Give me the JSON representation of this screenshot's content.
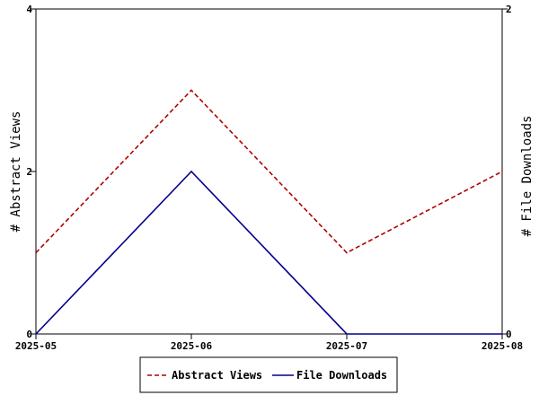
{
  "chart_data": {
    "type": "line",
    "title": "",
    "x": [
      "2025-05",
      "2025-06",
      "2025-07",
      "2025-08"
    ],
    "xlabel": "",
    "y_left": {
      "label": "# Abstract Views",
      "range": [
        0,
        4
      ],
      "ticks": [
        0,
        2,
        4
      ],
      "tick_labels": [
        "0",
        "2",
        "4"
      ]
    },
    "y_right": {
      "label": "# File Downloads",
      "range": [
        0,
        2
      ],
      "ticks": [
        0,
        2
      ],
      "tick_labels": [
        "0",
        "2"
      ]
    },
    "series": [
      {
        "name": "Abstract Views",
        "axis": "left",
        "values": [
          1,
          3,
          1,
          2
        ],
        "color": "#b00000",
        "dash": "dashed"
      },
      {
        "name": "File Downloads",
        "axis": "left",
        "values": [
          0,
          2,
          0,
          0
        ],
        "color": "#00008b",
        "dash": "solid"
      }
    ],
    "grid": false,
    "legend_position": "bottom-center"
  }
}
